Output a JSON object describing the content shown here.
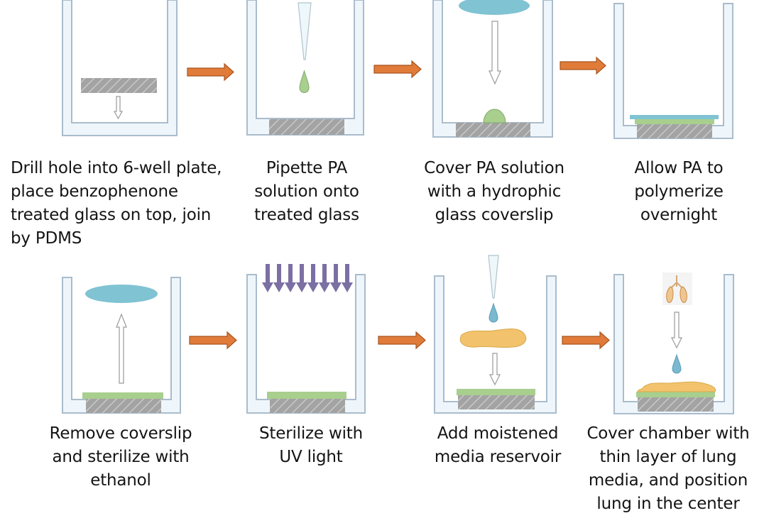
{
  "steps": [
    {
      "id": "drill",
      "lines": [
        "Drill hole into 6-well plate,",
        "place benzophenone",
        "treated glass on top, join",
        "by PDMS"
      ]
    },
    {
      "id": "pipette",
      "lines": [
        "Pipette PA",
        "solution onto",
        "treated glass"
      ]
    },
    {
      "id": "cover",
      "lines": [
        "Cover PA solution",
        "with a hydrophic",
        "glass coverslip"
      ]
    },
    {
      "id": "polymerize",
      "lines": [
        "Allow PA to",
        "polymerize",
        "overnight"
      ]
    },
    {
      "id": "remove",
      "lines": [
        "Remove coverslip",
        "and sterilize with",
        "ethanol"
      ]
    },
    {
      "id": "sterilize",
      "lines": [
        "Sterilize with",
        "UV light"
      ]
    },
    {
      "id": "media",
      "lines": [
        "Add moistened",
        "media reservoir"
      ]
    },
    {
      "id": "lung",
      "lines": [
        "Cover chamber with",
        "thin layer of lung",
        "media, and position",
        "lung in the center"
      ]
    }
  ],
  "colors": {
    "well_fill": "#eef6fb",
    "well_stroke": "#aabccc",
    "glass": "#999999",
    "glass_hatch": "#c8c8c8",
    "pa_gel": "#a8cf8e",
    "coverslip": "#80c3d3",
    "process_arrow": "#e07b39",
    "uv_arrow": "#7b6fa3",
    "media": "#f2c36c",
    "droplet": "#7ab9d0"
  }
}
